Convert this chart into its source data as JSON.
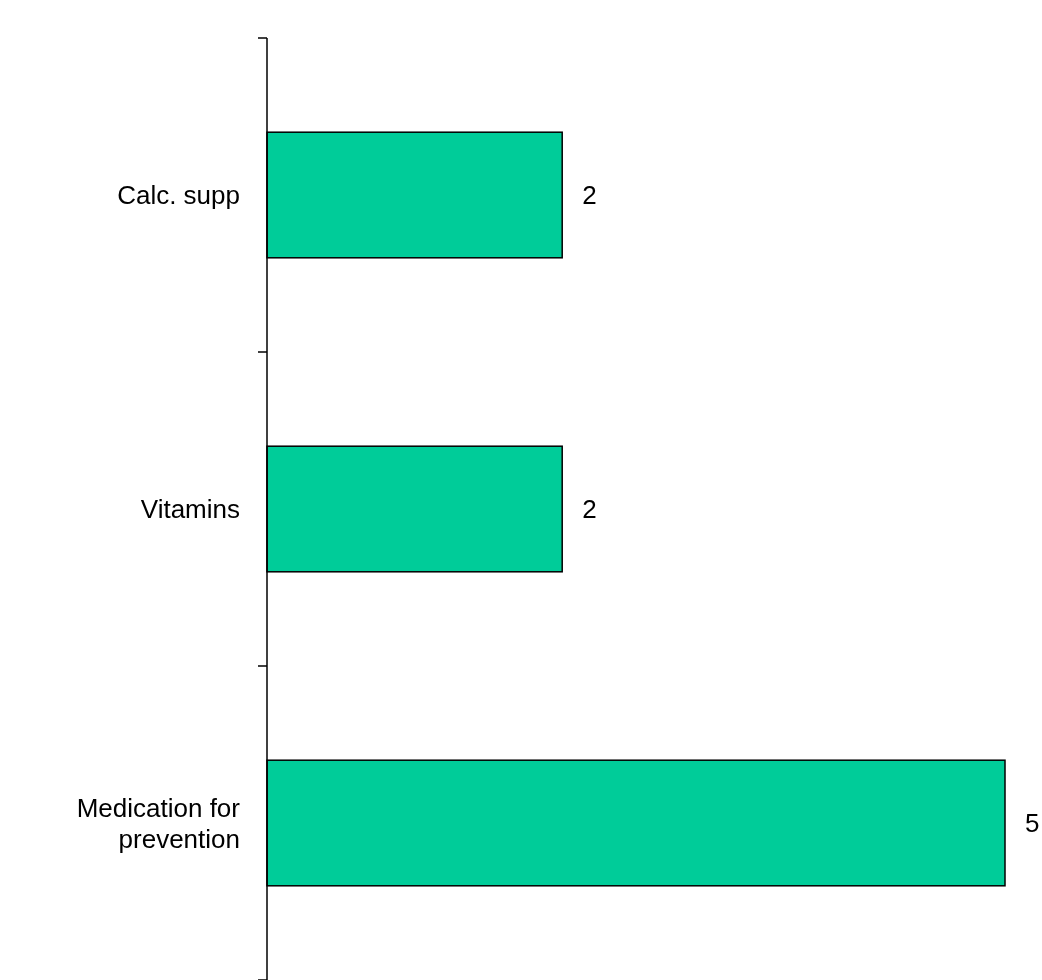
{
  "chart_data": {
    "type": "bar",
    "orientation": "horizontal",
    "categories": [
      "Calc. supp",
      "Vitamins",
      "Medication for prevention"
    ],
    "values": [
      2,
      2,
      5
    ],
    "color": "#00cc99",
    "data_labels": true
  }
}
